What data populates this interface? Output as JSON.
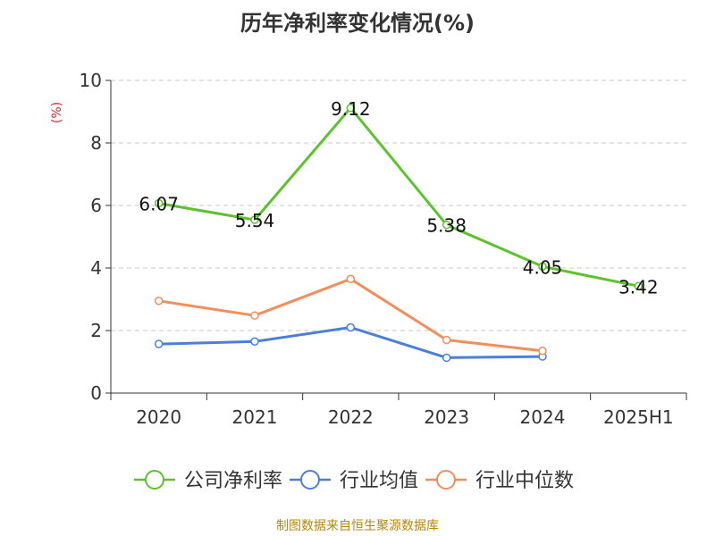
{
  "chart_data": {
    "type": "line",
    "title": "历年净利率变化情况(%)",
    "ylabel": "(%)",
    "xlabel": "",
    "categories": [
      "2020",
      "2021",
      "2022",
      "2023",
      "2024",
      "2025H1"
    ],
    "ylim": [
      0,
      10
    ],
    "yticks": [
      "0",
      "2",
      "4",
      "6",
      "8",
      "10"
    ],
    "grid": true,
    "legend_position": "bottom",
    "series": [
      {
        "name": "公司净利率",
        "color": "#5cc22e",
        "values": [
          6.07,
          5.54,
          9.12,
          5.38,
          4.05,
          3.42
        ],
        "labels": [
          "6.07",
          "5.54",
          "9.12",
          "5.38",
          "4.05",
          "3.42"
        ]
      },
      {
        "name": "行业均值",
        "color": "#4a7fdc",
        "values": [
          1.57,
          1.65,
          2.1,
          1.13,
          1.17,
          null
        ]
      },
      {
        "name": "行业中位数",
        "color": "#f28e5c",
        "values": [
          2.95,
          2.48,
          3.65,
          1.7,
          1.35,
          null
        ]
      }
    ]
  },
  "source": "制图数据来自恒生聚源数据库"
}
